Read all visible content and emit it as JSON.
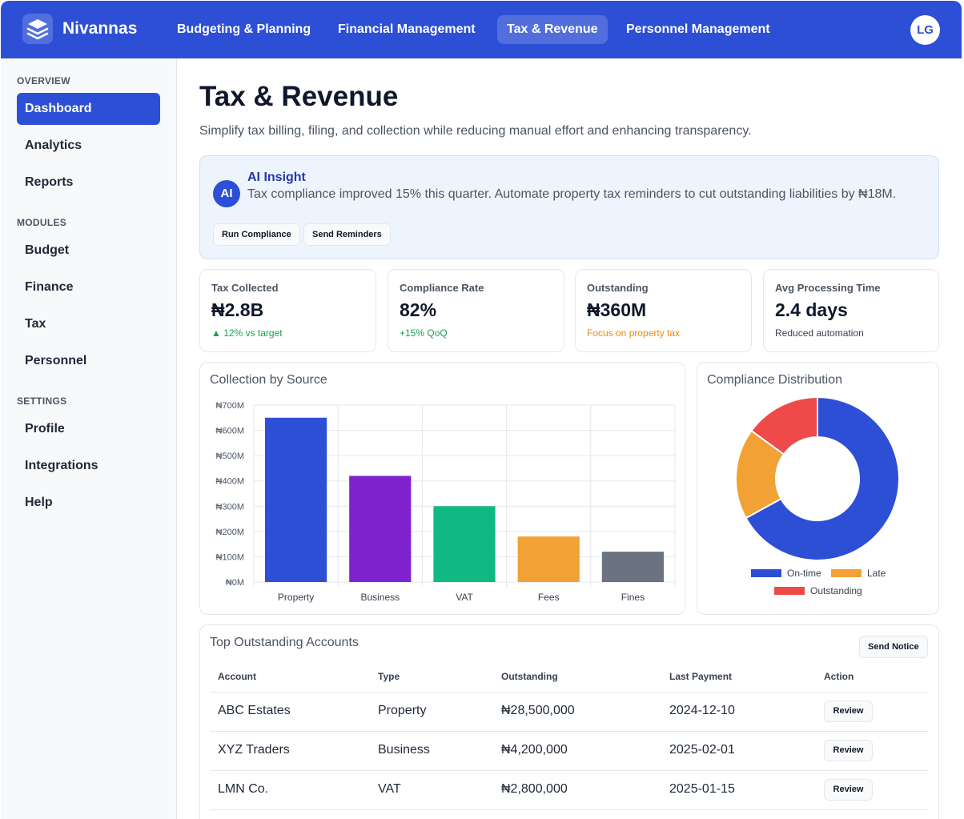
{
  "brand": {
    "name": "Nivannas",
    "logo_icon": "layers-icon"
  },
  "nav": {
    "items": [
      {
        "label": "Budgeting & Planning",
        "active": false
      },
      {
        "label": "Financial Management",
        "active": false
      },
      {
        "label": "Tax & Revenue",
        "active": true
      },
      {
        "label": "Personnel Management",
        "active": false
      }
    ],
    "avatar_initials": "LG"
  },
  "sidebar": {
    "sections": [
      {
        "title": "OVERVIEW",
        "items": [
          "Dashboard",
          "Analytics",
          "Reports"
        ]
      },
      {
        "title": "MODULES",
        "items": [
          "Budget",
          "Finance",
          "Tax",
          "Personnel"
        ]
      },
      {
        "title": "SETTINGS",
        "items": [
          "Profile",
          "Integrations",
          "Help"
        ]
      }
    ],
    "active_item": "Dashboard"
  },
  "page": {
    "title": "Tax & Revenue",
    "subtitle": "Simplify tax billing, filing, and collection while reducing manual effort and enhancing transparency."
  },
  "insight": {
    "badge": "AI",
    "title": "AI Insight",
    "text": "Tax compliance improved 15% this quarter. Automate property tax reminders to cut outstanding liabilities by ₦18M.",
    "buttons": [
      "Run Compliance",
      "Send Reminders"
    ]
  },
  "kpis": [
    {
      "label": "Tax Collected",
      "value": "₦2.8B",
      "note": "▲ 12% vs target",
      "note_color": "#16a34a"
    },
    {
      "label": "Compliance Rate",
      "value": "82%",
      "note": "+15% QoQ",
      "note_color": "#16a34a"
    },
    {
      "label": "Outstanding",
      "value": "₦360M",
      "note": "Focus on property tax",
      "note_color": "#ea8a0b"
    },
    {
      "label": "Avg Processing Time",
      "value": "2.4 days",
      "note": "Reduced automation",
      "note_color": "#374151"
    }
  ],
  "chart_data": [
    {
      "type": "bar",
      "title": "Collection by Source",
      "categories": [
        "Property",
        "Business",
        "VAT",
        "Fees",
        "Fines"
      ],
      "values": [
        650,
        420,
        300,
        180,
        120
      ],
      "unit": "₦M",
      "ylim": [
        0,
        700
      ],
      "yticks": [
        "₦0M",
        "₦100M",
        "₦200M",
        "₦300M",
        "₦400M",
        "₦500M",
        "₦600M",
        "₦700M"
      ],
      "colors": [
        "#2d4fd6",
        "#7e22ce",
        "#10b981",
        "#f2a134",
        "#6b7280"
      ],
      "grid": true
    },
    {
      "type": "pie",
      "title": "Compliance Distribution",
      "labels": [
        "On-time",
        "Late",
        "Outstanding"
      ],
      "values": [
        67,
        18,
        15
      ],
      "colors": [
        "#2d4fd6",
        "#f2a134",
        "#ef4a4a"
      ],
      "donut": true,
      "legend": "bottom"
    }
  ],
  "accounts_table": {
    "title": "Top Outstanding Accounts",
    "action_button": "Send Notice",
    "columns": [
      "Account",
      "Type",
      "Outstanding",
      "Last Payment",
      "Action"
    ],
    "rows": [
      {
        "account": "ABC Estates",
        "type": "Property",
        "outstanding": "₦28,500,000",
        "last_payment": "2024-12-10",
        "action": "Review"
      },
      {
        "account": "XYZ Traders",
        "type": "Business",
        "outstanding": "₦4,200,000",
        "last_payment": "2025-02-01",
        "action": "Review"
      },
      {
        "account": "LMN Co.",
        "type": "VAT",
        "outstanding": "₦2,800,000",
        "last_payment": "2025-01-15",
        "action": "Review"
      }
    ]
  },
  "colors": {
    "primary": "#2d4fd6",
    "insight_bg": "#eef4fd",
    "positive": "#16a34a",
    "warning": "#ea8a0b"
  }
}
